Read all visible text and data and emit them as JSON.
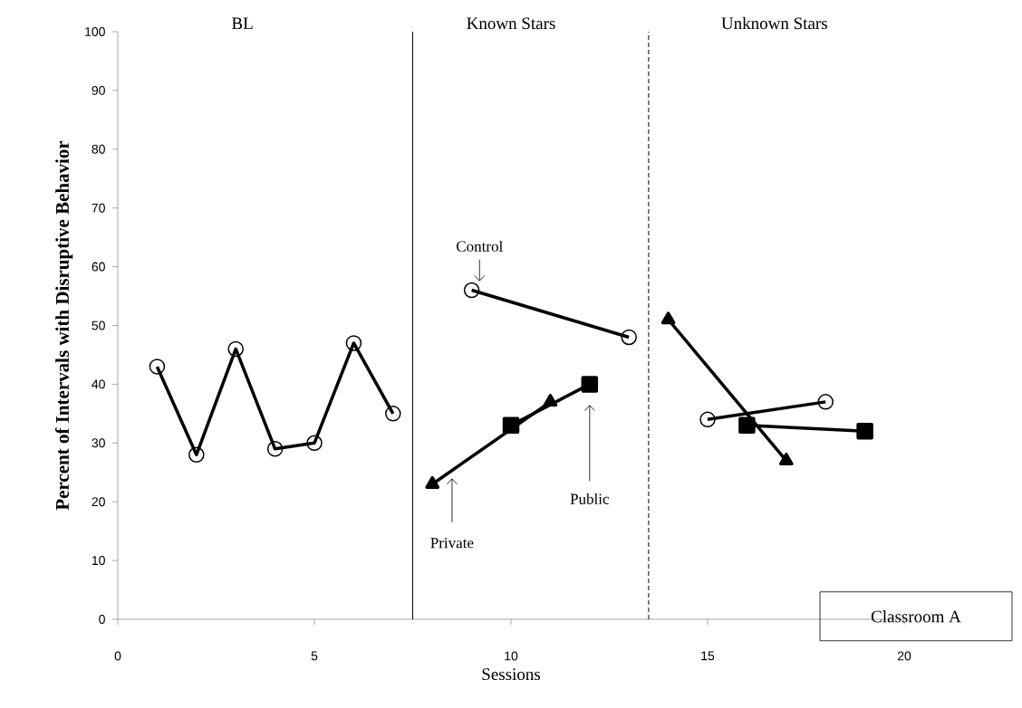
{
  "chart_data": {
    "type": "line",
    "xlabel": "Sessions",
    "ylabel": "Percent of Intervals with Disruptive Behavior",
    "xlim": [
      0,
      20
    ],
    "xticks": [
      0,
      5,
      10,
      15,
      20
    ],
    "ylim": [
      0,
      100
    ],
    "yticks": [
      0,
      10,
      20,
      30,
      40,
      50,
      60,
      70,
      80,
      90,
      100
    ],
    "grid": false,
    "legend": false,
    "series": [
      {
        "name": "Control",
        "color": "#000000",
        "marker": "circle",
        "x": [
          1,
          2,
          3,
          4,
          5,
          6,
          7,
          8,
          9,
          13,
          14,
          15,
          18
        ],
        "values": [
          43,
          28,
          46,
          29,
          30,
          47,
          35,
          null,
          56,
          48,
          null,
          34,
          37
        ]
      },
      {
        "name": "Private",
        "color": "#000000",
        "marker": "triangle",
        "x": [
          8,
          11,
          12,
          14,
          17
        ],
        "values": [
          23,
          37,
          null,
          51,
          27
        ]
      },
      {
        "name": "Public",
        "color": "#000000",
        "marker": "square",
        "x": [
          10,
          12,
          13,
          16,
          19
        ],
        "values": [
          33,
          40,
          null,
          33,
          32
        ]
      }
    ],
    "ref_lines": [
      {
        "axis": "x",
        "value": 7.5,
        "line_style": "solid"
      },
      {
        "axis": "x",
        "value": 13.5,
        "line_style": "dashed"
      }
    ],
    "annotations": [
      "BL",
      "Known Stars",
      "Unknown Stars",
      "Classroom A"
    ]
  }
}
